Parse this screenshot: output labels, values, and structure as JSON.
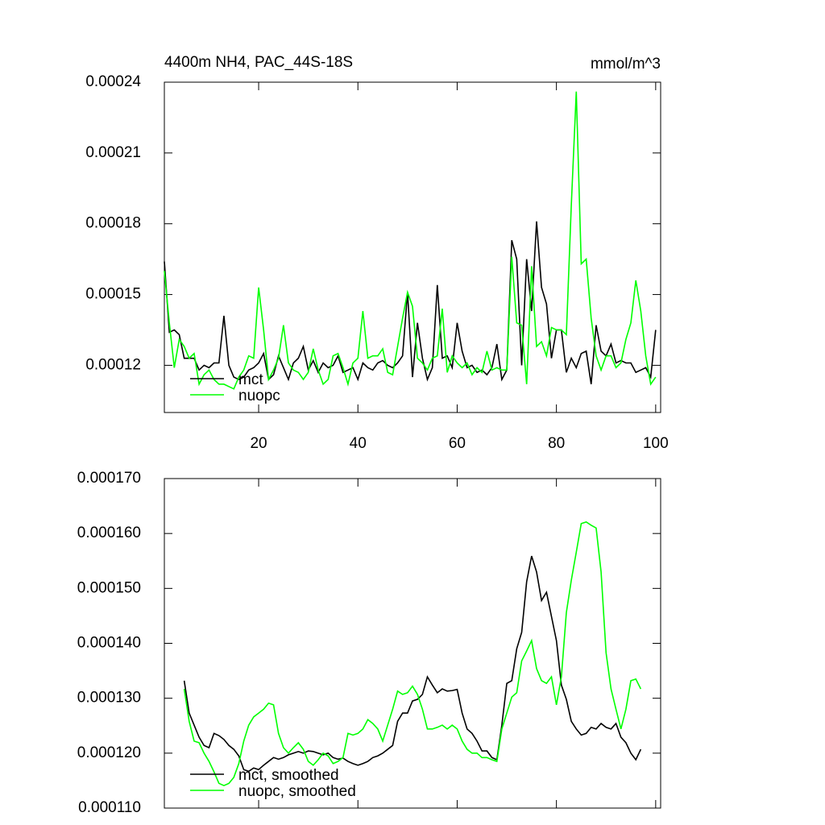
{
  "chart_data": [
    {
      "type": "line",
      "title": "4400m NH4, PAC_44S-18S",
      "subtitle": "mmol/m^3",
      "x": [
        1,
        2,
        3,
        4,
        5,
        6,
        7,
        8,
        9,
        10,
        11,
        12,
        13,
        14,
        15,
        16,
        17,
        18,
        19,
        20,
        21,
        22,
        23,
        24,
        25,
        26,
        27,
        28,
        29,
        30,
        31,
        32,
        33,
        34,
        35,
        36,
        37,
        38,
        39,
        40,
        41,
        42,
        43,
        44,
        45,
        46,
        47,
        48,
        49,
        50,
        51,
        52,
        53,
        54,
        55,
        56,
        57,
        58,
        59,
        60,
        61,
        62,
        63,
        64,
        65,
        66,
        67,
        68,
        69,
        70,
        71,
        72,
        73,
        74,
        75,
        76,
        77,
        78,
        79,
        80,
        81,
        82,
        83,
        84,
        85,
        86,
        87,
        88,
        89,
        90,
        91,
        92,
        93,
        94,
        95,
        96,
        97,
        98,
        99,
        100
      ],
      "series": [
        {
          "name": "mct",
          "color": "#000000",
          "values": [
            0.000164,
            0.000134,
            0.000135,
            0.000133,
            0.000123,
            0.000123,
            0.000123,
            0.000118,
            0.00012,
            0.000119,
            0.000121,
            0.000121,
            0.000141,
            0.00012,
            0.000115,
            0.000114,
            0.000115,
            0.000118,
            0.000119,
            0.000121,
            0.000125,
            0.000114,
            0.000116,
            0.000124,
            0.000119,
            0.000114,
            0.000121,
            0.000123,
            0.000128,
            0.000118,
            0.000122,
            0.000117,
            0.000121,
            0.000119,
            0.00012,
            0.000124,
            0.000117,
            0.000118,
            0.000119,
            0.000114,
            0.000121,
            0.000119,
            0.000118,
            0.000121,
            0.000122,
            0.00012,
            0.000119,
            0.000121,
            0.000124,
            0.000151,
            0.000115,
            0.000138,
            0.000123,
            0.000114,
            0.000119,
            0.000154,
            0.000123,
            0.000124,
            0.000119,
            0.000138,
            0.000126,
            0.000119,
            0.00012,
            0.000117,
            0.000118,
            0.000116,
            0.000119,
            0.000129,
            0.000114,
            0.000118,
            0.000173,
            0.000165,
            0.00012,
            0.000165,
            0.000143,
            0.000181,
            0.000153,
            0.000146,
            0.000123,
            0.000135,
            0.000135,
            0.000117,
            0.000123,
            0.000119,
            0.000125,
            0.000126,
            0.000112,
            0.000137,
            0.000126,
            0.000124,
            0.000129,
            0.000121,
            0.000122,
            0.000121,
            0.000121,
            0.000117,
            0.000118,
            0.000119,
            0.000115,
            0.000135
          ]
        },
        {
          "name": "nuopc",
          "color": "#00ff00",
          "values": [
            0.00016,
            0.000138,
            0.000119,
            0.000131,
            0.000128,
            0.000123,
            0.000125,
            0.000112,
            0.000116,
            0.000118,
            0.000114,
            0.000112,
            0.000112,
            0.000111,
            0.00011,
            0.000115,
            0.000118,
            0.000124,
            0.000123,
            0.000153,
            0.000135,
            0.000114,
            0.000118,
            0.000123,
            0.000137,
            0.000121,
            0.000118,
            0.000117,
            0.000114,
            0.000117,
            0.000127,
            0.000118,
            0.000112,
            0.000114,
            0.000124,
            0.000125,
            0.000119,
            0.000112,
            0.000121,
            0.000123,
            0.000143,
            0.000123,
            0.000124,
            0.000124,
            0.000127,
            0.000117,
            0.000116,
            0.000128,
            0.00014,
            0.000151,
            0.000145,
            0.000123,
            0.000121,
            0.000118,
            0.000123,
            0.000124,
            0.000144,
            0.000117,
            0.000124,
            0.000121,
            0.000119,
            0.000121,
            0.000116,
            0.000119,
            0.000117,
            0.000126,
            0.000118,
            0.000119,
            0.000118,
            0.000118,
            0.000166,
            0.000138,
            0.000137,
            0.000112,
            0.000162,
            0.000128,
            0.00013,
            0.000124,
            0.000136,
            0.000135,
            0.000135,
            0.000133,
            0.000188,
            0.000236,
            0.000163,
            0.000165,
            0.00014,
            0.000124,
            0.000118,
            0.000124,
            0.000124,
            0.000119,
            0.000121,
            0.000131,
            0.000138,
            0.000156,
            0.000143,
            0.000124,
            0.000112,
            0.000115
          ]
        }
      ],
      "xlim": [
        1,
        101
      ],
      "xticks": [
        20,
        40,
        60,
        80,
        100
      ],
      "xtick_labels": true,
      "ylim": [
        0.0001,
        0.00024
      ],
      "yticks": [
        0.00012,
        0.00015,
        0.00018,
        0.00021,
        0.00024
      ],
      "legend": "lower-left"
    },
    {
      "type": "line",
      "x": [
        5,
        6,
        7,
        8,
        9,
        10,
        11,
        12,
        13,
        14,
        15,
        16,
        17,
        18,
        19,
        20,
        21,
        22,
        23,
        24,
        25,
        26,
        27,
        28,
        29,
        30,
        31,
        32,
        33,
        34,
        35,
        36,
        37,
        38,
        39,
        40,
        41,
        42,
        43,
        44,
        45,
        46,
        47,
        48,
        49,
        50,
        51,
        52,
        53,
        54,
        55,
        56,
        57,
        58,
        59,
        60,
        61,
        62,
        63,
        64,
        65,
        66,
        67,
        68,
        69,
        70,
        71,
        72,
        73,
        74,
        75,
        76,
        77,
        78,
        79,
        80,
        81,
        82,
        83,
        84,
        85,
        86,
        87,
        88,
        89,
        90,
        91,
        92,
        93,
        94,
        95,
        96,
        97
      ],
      "series": [
        {
          "name": "mct, smoothed",
          "color": "#000000",
          "values": [
            0.0001332,
            0.0001273,
            0.0001251,
            0.0001229,
            0.0001214,
            0.000121,
            0.0001236,
            0.0001232,
            0.0001225,
            0.0001214,
            0.0001207,
            0.0001195,
            0.000117,
            0.0001167,
            0.0001173,
            0.000117,
            0.0001178,
            0.0001185,
            0.0001192,
            0.0001189,
            0.0001192,
            0.0001197,
            0.00012,
            0.0001203,
            0.00012,
            0.0001204,
            0.0001203,
            0.00012,
            0.0001197,
            0.00012,
            0.0001192,
            0.0001189,
            0.0001191,
            0.0001185,
            0.0001181,
            0.0001178,
            0.0001181,
            0.0001185,
            0.0001192,
            0.0001195,
            0.00012,
            0.0001207,
            0.0001214,
            0.0001258,
            0.0001273,
            0.0001273,
            0.0001295,
            0.0001298,
            0.0001307,
            0.0001339,
            0.0001324,
            0.000131,
            0.0001317,
            0.0001313,
            0.0001314,
            0.0001316,
            0.0001273,
            0.0001244,
            0.0001236,
            0.0001222,
            0.0001204,
            0.0001204,
            0.0001192,
            0.0001188,
            0.0001251,
            0.0001327,
            0.0001332,
            0.000139,
            0.000142,
            0.0001512,
            0.0001559,
            0.000153,
            0.0001478,
            0.0001493,
            0.0001449,
            0.0001405,
            0.0001324,
            0.0001298,
            0.0001258,
            0.0001244,
            0.0001233,
            0.0001236,
            0.0001247,
            0.0001244,
            0.0001254,
            0.0001247,
            0.0001244,
            0.0001254,
            0.0001229,
            0.0001219,
            0.00012,
            0.0001188,
            0.0001207
          ]
        },
        {
          "name": "nuopc, smoothed",
          "color": "#00ff00",
          "values": [
            0.0001317,
            0.0001258,
            0.0001222,
            0.0001219,
            0.00012,
            0.0001185,
            0.0001166,
            0.0001145,
            0.0001141,
            0.0001145,
            0.0001156,
            0.0001181,
            0.0001222,
            0.0001251,
            0.0001266,
            0.0001273,
            0.000128,
            0.0001291,
            0.0001288,
            0.0001236,
            0.000121,
            0.00012,
            0.000121,
            0.0001219,
            0.0001207,
            0.0001185,
            0.0001178,
            0.0001188,
            0.00012,
            0.0001195,
            0.0001181,
            0.0001185,
            0.0001192,
            0.0001236,
            0.0001233,
            0.0001236,
            0.0001244,
            0.0001261,
            0.0001254,
            0.0001244,
            0.0001222,
            0.0001251,
            0.000128,
            0.0001313,
            0.0001307,
            0.000131,
            0.0001322,
            0.0001307,
            0.000128,
            0.0001244,
            0.0001244,
            0.0001247,
            0.0001251,
            0.0001244,
            0.0001251,
            0.0001244,
            0.0001222,
            0.0001207,
            0.00012,
            0.00012,
            0.0001192,
            0.0001192,
            0.0001188,
            0.0001185,
            0.0001244,
            0.0001273,
            0.0001302,
            0.000131,
            0.0001368,
            0.0001386,
            0.0001405,
            0.0001354,
            0.0001332,
            0.0001327,
            0.0001339,
            0.0001288,
            0.0001339,
            0.0001456,
            0.0001515,
            0.0001566,
            0.0001618,
            0.0001621,
            0.0001615,
            0.000161,
            0.000153,
            0.0001383,
            0.0001317,
            0.000128,
            0.0001244,
            0.000128,
            0.0001332,
            0.0001335,
            0.0001317
          ]
        }
      ],
      "xlim": [
        1,
        101
      ],
      "xticks": [
        20,
        40,
        60,
        80,
        100
      ],
      "xtick_labels": false,
      "ylim": [
        0.00011,
        0.00017
      ],
      "yticks": [
        {
          "value": 0.00011,
          "label": "0.000110"
        },
        {
          "value": 0.00012,
          "label": "0.000120"
        },
        {
          "value": 0.00013,
          "label": "0.000130"
        },
        {
          "value": 0.00014,
          "label": "0.000140"
        },
        {
          "value": 0.00015,
          "label": "0.000150"
        },
        {
          "value": 0.00016,
          "label": "0.000160"
        },
        {
          "value": 0.00017,
          "label": "0.000170"
        }
      ],
      "legend": "lower-left"
    }
  ]
}
